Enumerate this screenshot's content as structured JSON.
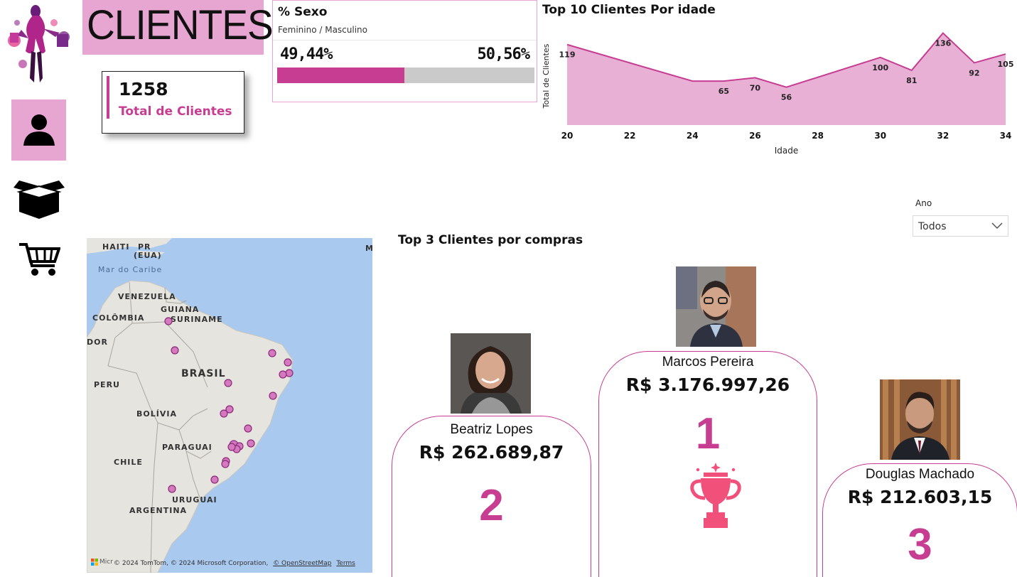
{
  "header": {
    "title": "CLIENTES"
  },
  "kpi": {
    "value": "1258",
    "label": "Total de Clientes"
  },
  "nav": {
    "items": [
      {
        "name": "clientes",
        "icon": "person-icon",
        "active": true
      },
      {
        "name": "produtos",
        "icon": "box-icon",
        "active": false
      },
      {
        "name": "vendas",
        "icon": "shopping-cart-icon",
        "active": false
      }
    ]
  },
  "sexo": {
    "title": "% Sexo",
    "subtitle": "Feminino / Masculino",
    "feminino_label": "49,44%",
    "masculino_label": "50,56%",
    "feminino_fraction": 0.4944,
    "colors": {
      "feminino": "#c63d91",
      "masculino": "#cacaca"
    }
  },
  "chart_data": {
    "type": "area",
    "title": "Top 10 Clientes Por idade",
    "xlabel": "Idade",
    "ylabel": "Total de Clientes",
    "x": [
      20,
      24,
      25,
      26,
      27,
      30,
      31,
      32,
      33,
      34
    ],
    "values": [
      119,
      65,
      65,
      70,
      56,
      100,
      81,
      136,
      92,
      105
    ],
    "data_labels": [
      {
        "x": 20,
        "label": "119"
      },
      {
        "x": 25,
        "label": "65"
      },
      {
        "x": 26,
        "label": "70"
      },
      {
        "x": 27,
        "label": "56"
      },
      {
        "x": 30,
        "label": "100"
      },
      {
        "x": 31,
        "label": "81"
      },
      {
        "x": 32,
        "label": "136"
      },
      {
        "x": 33,
        "label": "92"
      },
      {
        "x": 34,
        "label": "105"
      }
    ],
    "xticks": [
      "20",
      "22",
      "24",
      "26",
      "28",
      "30",
      "32",
      "34"
    ],
    "xlim": [
      20,
      34
    ],
    "ylim": [
      0,
      145
    ],
    "colors": {
      "line": "#c63d91",
      "fill": "#e9b0d6"
    },
    "grid": false
  },
  "slicer": {
    "label": "Ano",
    "value": "Todos"
  },
  "map": {
    "labels": {
      "haiti": "HAITI",
      "pr": "PR",
      "eua": "(EUA)",
      "m": "M",
      "caribe": "Mar do Caribe",
      "venezuela": "VENEZUELA",
      "guiana": "GUIANA",
      "colombia": "COLÔMBIA",
      "suriname": "SURINAME",
      "dor": "DOR",
      "brasil": "BRASIL",
      "peru": "PERU",
      "bolivia": "BOLÍVIA",
      "paraguai": "PARAGUAI",
      "chile": "CHILE",
      "uruguai": "URUGUAI",
      "argentina": "ARGENTINA"
    },
    "attribution": "© 2024 TomTom, © 2024 Microsoft Corporation,",
    "osm_link": "© OpenStreetMap",
    "terms_link": "Terms",
    "brand_stub": "Micr",
    "point_color": "#d479be"
  },
  "top3": {
    "title": "Top 3 Clientes por compras",
    "clientes": [
      {
        "rank": "1",
        "name": "Marcos Pereira",
        "value": "R$ 3.176.997,26"
      },
      {
        "rank": "2",
        "name": "Beatriz Lopes",
        "value": "R$ 262.689,87"
      },
      {
        "rank": "3",
        "name": "Douglas Machado",
        "value": "R$ 212.603,15"
      }
    ],
    "trophy_icon": "trophy-icon",
    "trophy_color": "#f0507a"
  }
}
